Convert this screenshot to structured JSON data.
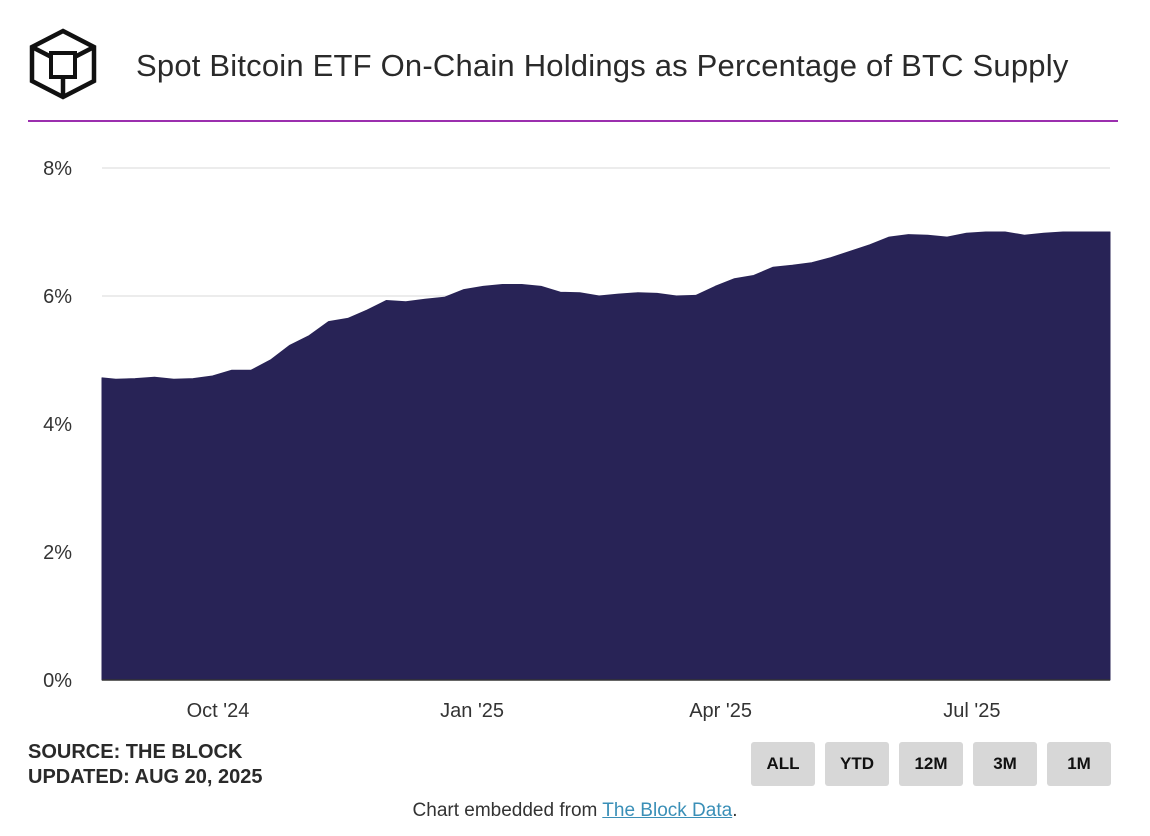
{
  "header": {
    "title": "Spot Bitcoin ETF On-Chain Holdings as Percentage of BTC Supply"
  },
  "footer": {
    "source": "SOURCE: THE BLOCK",
    "updated": "UPDATED: AUG 20, 2025",
    "embed_prefix": "Chart embedded from ",
    "embed_link": "The Block Data",
    "embed_suffix": "."
  },
  "range_buttons": [
    "ALL",
    "YTD",
    "12M",
    "3M",
    "1M"
  ],
  "colors": {
    "fill": "#282356",
    "accent_line": "#9b2fae",
    "gridline": "#e6e6e6",
    "button_bg": "#d7d7d7"
  },
  "chart_data": {
    "type": "area",
    "title": "Spot Bitcoin ETF On-Chain Holdings as Percentage of BTC Supply",
    "xlabel": "",
    "ylabel": "",
    "x_range": [
      "2024-08-20",
      "2025-08-20"
    ],
    "ylim": [
      0,
      8
    ],
    "y_ticks": [
      0,
      2,
      4,
      6,
      8
    ],
    "y_tick_labels": [
      "0%",
      "2%",
      "4%",
      "6%",
      "8%"
    ],
    "x_ticks": [
      "2024-10-01",
      "2025-01-01",
      "2025-04-01",
      "2025-07-01"
    ],
    "x_tick_labels": [
      "Oct '24",
      "Jan '25",
      "Apr '25",
      "Jul '25"
    ],
    "grid": true,
    "series": [
      {
        "x": [
          "2024-08-20",
          "2024-08-25",
          "2024-09-01",
          "2024-09-08",
          "2024-09-15",
          "2024-09-22",
          "2024-09-29",
          "2024-10-06",
          "2024-10-13",
          "2024-10-20",
          "2024-10-27",
          "2024-11-03",
          "2024-11-10",
          "2024-11-17",
          "2024-11-24",
          "2024-12-01",
          "2024-12-08",
          "2024-12-15",
          "2024-12-22",
          "2024-12-29",
          "2025-01-05",
          "2025-01-12",
          "2025-01-19",
          "2025-01-26",
          "2025-02-02",
          "2025-02-09",
          "2025-02-16",
          "2025-02-23",
          "2025-03-02",
          "2025-03-09",
          "2025-03-16",
          "2025-03-23",
          "2025-03-30",
          "2025-04-06",
          "2025-04-13",
          "2025-04-20",
          "2025-04-27",
          "2025-05-04",
          "2025-05-11",
          "2025-05-18",
          "2025-05-25",
          "2025-06-01",
          "2025-06-08",
          "2025-06-15",
          "2025-06-22",
          "2025-06-29",
          "2025-07-06",
          "2025-07-13",
          "2025-07-20",
          "2025-07-27",
          "2025-08-03",
          "2025-08-10",
          "2025-08-20"
        ],
        "values": [
          4.72,
          4.7,
          4.71,
          4.73,
          4.7,
          4.71,
          4.75,
          4.84,
          4.84,
          5.0,
          5.23,
          5.38,
          5.6,
          5.65,
          5.78,
          5.93,
          5.91,
          5.95,
          5.98,
          6.1,
          6.15,
          6.18,
          6.18,
          6.15,
          6.06,
          6.05,
          6.0,
          6.03,
          6.05,
          6.04,
          6.0,
          6.01,
          6.15,
          6.27,
          6.32,
          6.45,
          6.48,
          6.52,
          6.6,
          6.7,
          6.8,
          6.92,
          6.96,
          6.95,
          6.92,
          6.98,
          7.0,
          7.0,
          6.95,
          6.98,
          7.0,
          7.0,
          7.0
        ]
      }
    ]
  }
}
